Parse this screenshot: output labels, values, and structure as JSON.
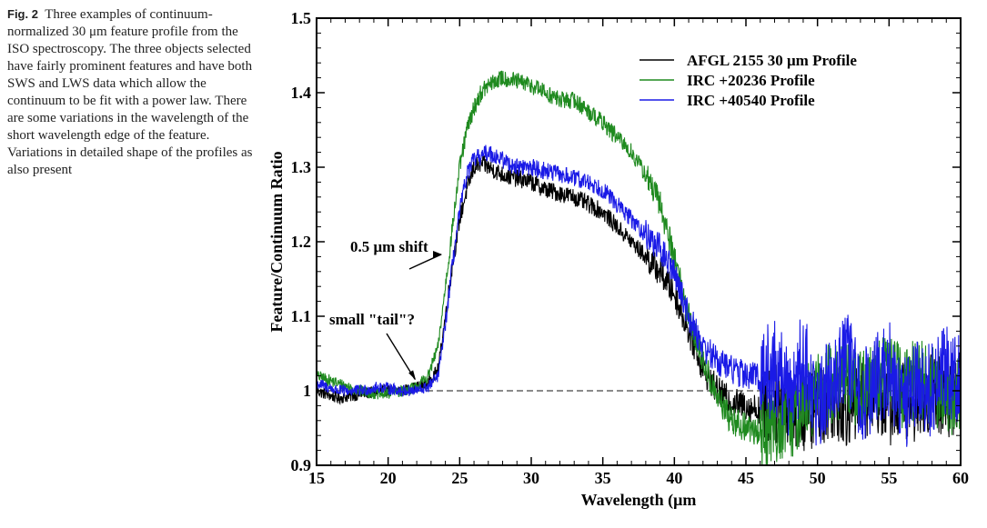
{
  "caption": {
    "label": "Fig. 2",
    "text": "Three examples of continuum-normalized 30 μm feature profile from the ISO spectroscopy. The three objects selected have fairly prominent features and have both SWS and LWS data which allow the continuum to be fit with a power law. There are some variations in the wavelength of the short wavelength edge of the feature. Variations in detailed shape of the profiles as also present"
  },
  "chart_data": {
    "type": "line",
    "xlabel": "Wavelength (μm",
    "ylabel": "Feature/Continuum Ratio",
    "xlim": [
      15,
      60
    ],
    "ylim": [
      0.9,
      1.5
    ],
    "xticks": [
      "15",
      "20",
      "25",
      "30",
      "35",
      "40",
      "45",
      "50",
      "55",
      "60"
    ],
    "yticks": [
      "0.9",
      "1",
      "1.1",
      "1.2",
      "1.3",
      "1.4",
      "1.5"
    ],
    "reference_line": {
      "y": 1.0,
      "style": "dashed"
    },
    "legend_position": "top-right",
    "annotations": [
      {
        "text": "0.5 μm shift",
        "x": 23.9,
        "y": 1.183
      },
      {
        "text": "small \"tail\"?",
        "x": 22.0,
        "y": 1.013
      }
    ],
    "series": [
      {
        "name": "AFGL 2155 30 μm Profile",
        "color": "#000000",
        "x": [
          15.0,
          16.5,
          18.0,
          19.5,
          21.0,
          22.0,
          22.8,
          23.5,
          24.0,
          24.5,
          25.0,
          25.5,
          26.0,
          26.5,
          27.0,
          28.0,
          29.0,
          30.0,
          31.0,
          32.0,
          33.0,
          34.0,
          35.0,
          36.0,
          37.0,
          38.0,
          39.0,
          40.0,
          41.0,
          42.0,
          43.0,
          44.0,
          45.0,
          46.0,
          47.0,
          48.0,
          49.0,
          50.0,
          51.0,
          52.0,
          53.0,
          54.0,
          55.0,
          56.0,
          57.0,
          58.0,
          59.0,
          60.0
        ],
        "y": [
          1.0,
          0.99,
          0.995,
          1.0,
          1.0,
          1.005,
          1.01,
          1.03,
          1.1,
          1.17,
          1.23,
          1.27,
          1.3,
          1.305,
          1.3,
          1.29,
          1.285,
          1.28,
          1.27,
          1.265,
          1.26,
          1.25,
          1.24,
          1.22,
          1.2,
          1.18,
          1.16,
          1.13,
          1.08,
          1.03,
          1.0,
          0.985,
          0.98,
          0.975,
          0.98,
          0.985,
          0.97,
          0.98,
          0.99,
          0.98,
          0.985,
          1.0,
          0.98,
          0.99,
          0.985,
          1.0,
          0.99,
          1.0
        ]
      },
      {
        "name": "IRC +20236 Profile",
        "color": "#1f8a1f",
        "x": [
          15.0,
          16.5,
          18.0,
          19.5,
          21.0,
          22.0,
          22.8,
          23.5,
          24.0,
          24.5,
          25.0,
          25.5,
          26.0,
          26.5,
          27.0,
          28.0,
          29.0,
          30.0,
          31.0,
          32.0,
          33.0,
          34.0,
          35.0,
          36.0,
          37.0,
          38.0,
          39.0,
          40.0,
          41.0,
          42.0,
          43.0,
          44.0,
          45.0,
          46.0,
          47.0,
          48.0,
          49.0,
          50.0,
          51.0,
          52.0,
          53.0,
          54.0,
          55.0,
          56.0,
          57.0,
          58.0,
          59.0,
          60.0
        ],
        "y": [
          1.02,
          1.01,
          1.0,
          0.995,
          1.0,
          1.005,
          1.02,
          1.06,
          1.14,
          1.22,
          1.3,
          1.35,
          1.38,
          1.4,
          1.41,
          1.42,
          1.415,
          1.41,
          1.4,
          1.39,
          1.39,
          1.375,
          1.36,
          1.34,
          1.32,
          1.29,
          1.25,
          1.18,
          1.1,
          1.04,
          0.99,
          0.96,
          0.95,
          0.945,
          0.955,
          0.96,
          0.98,
          1.0,
          1.01,
          1.02,
          1.0,
          1.01,
          1.03,
          1.0,
          1.02,
          1.01,
          0.99,
          1.0
        ]
      },
      {
        "name": "IRC +40540 Profile",
        "color": "#1a1ae6",
        "x": [
          15.0,
          16.5,
          18.0,
          19.5,
          21.0,
          22.0,
          22.8,
          23.5,
          24.0,
          24.5,
          25.0,
          25.5,
          26.0,
          26.5,
          27.0,
          28.0,
          29.0,
          30.0,
          31.0,
          32.0,
          33.0,
          34.0,
          35.0,
          36.0,
          37.0,
          38.0,
          39.0,
          40.0,
          41.0,
          42.0,
          43.0,
          44.0,
          45.0,
          46.0,
          47.0,
          48.0,
          49.0,
          50.0,
          51.0,
          52.0,
          53.0,
          54.0,
          55.0,
          56.0,
          57.0,
          58.0,
          59.0,
          60.0
        ],
        "y": [
          1.01,
          1.0,
          1.0,
          1.005,
          1.0,
          1.0,
          1.005,
          1.02,
          1.09,
          1.17,
          1.24,
          1.29,
          1.31,
          1.315,
          1.32,
          1.31,
          1.3,
          1.3,
          1.295,
          1.29,
          1.285,
          1.28,
          1.27,
          1.25,
          1.23,
          1.21,
          1.19,
          1.16,
          1.1,
          1.06,
          1.04,
          1.03,
          1.02,
          1.02,
          1.03,
          1.0,
          1.04,
          0.98,
          1.02,
          1.05,
          0.99,
          1.01,
          1.03,
          0.98,
          1.02,
          1.0,
          1.03,
          1.02
        ]
      }
    ]
  }
}
